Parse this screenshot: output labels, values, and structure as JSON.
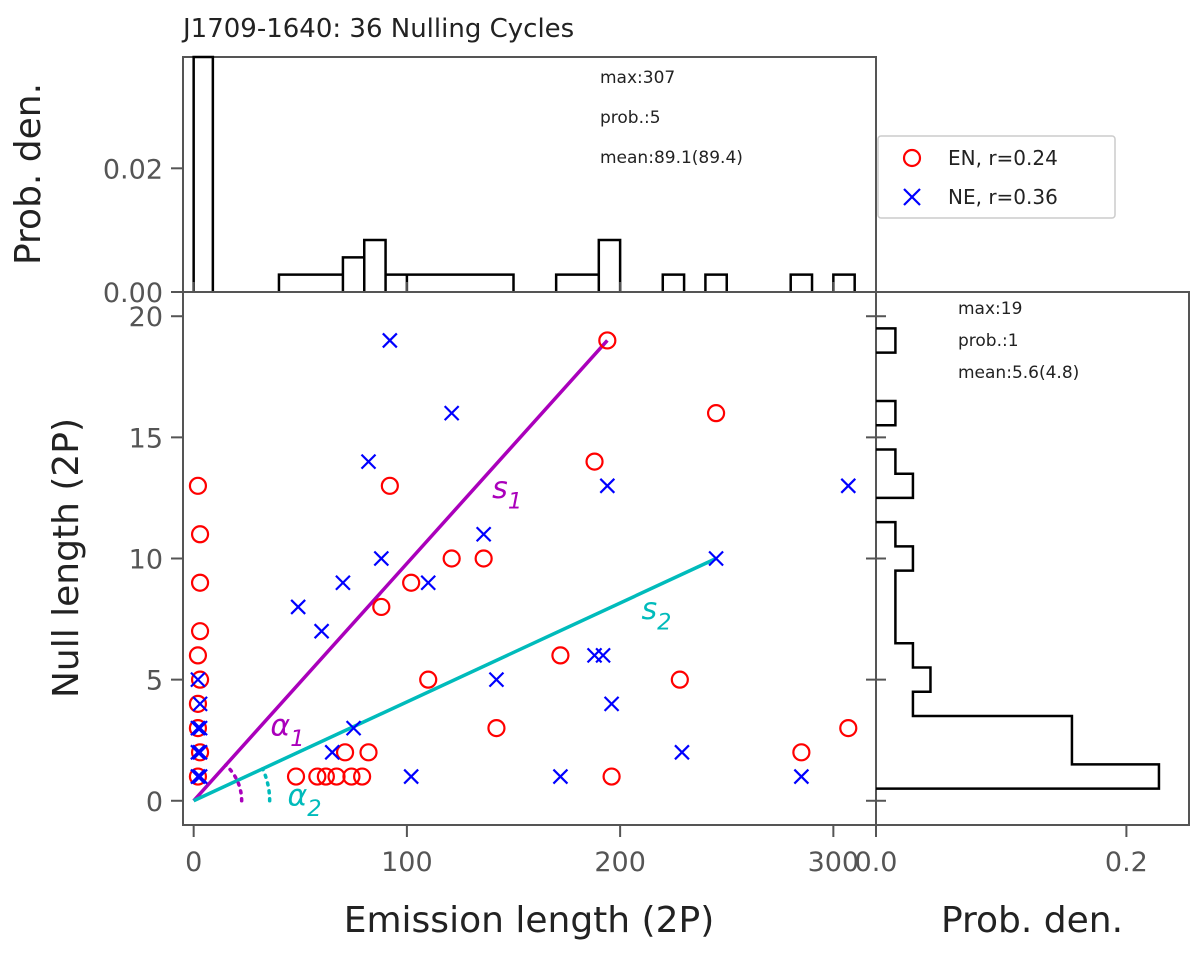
{
  "title": "J1709-1640: 36 Nulling Cycles",
  "colors": {
    "en": "#ff0000",
    "ne": "#0000ff",
    "s1": "#aa00bb",
    "s2": "#00bbbb",
    "axes": "#555555",
    "hist": "#000000"
  },
  "chart_data": [
    {
      "id": "scatter",
      "type": "scatter",
      "xlabel": "Emission length (2P)",
      "ylabel": "Null length (2P)",
      "xlim": [
        -5,
        320
      ],
      "ylim": [
        -1,
        21
      ],
      "xticks": [
        0,
        100,
        200,
        300
      ],
      "yticks": [
        0,
        5,
        10,
        15,
        20
      ],
      "series": [
        {
          "name": "EN, r=0.24",
          "key": "en",
          "marker": "circle",
          "points": [
            [
              2,
              13
            ],
            [
              3,
              11
            ],
            [
              3,
              9
            ],
            [
              3,
              7
            ],
            [
              2,
              6
            ],
            [
              3,
              5
            ],
            [
              2,
              4
            ],
            [
              2,
              3
            ],
            [
              3,
              2
            ],
            [
              2,
              1
            ],
            [
              48,
              1
            ],
            [
              58,
              1
            ],
            [
              62,
              1
            ],
            [
              67,
              1
            ],
            [
              74,
              1
            ],
            [
              79,
              1
            ],
            [
              71,
              2
            ],
            [
              82,
              2
            ],
            [
              88,
              8
            ],
            [
              92,
              13
            ],
            [
              102,
              9
            ],
            [
              110,
              5
            ],
            [
              121,
              10
            ],
            [
              136,
              10
            ],
            [
              142,
              3
            ],
            [
              172,
              6
            ],
            [
              188,
              14
            ],
            [
              194,
              19
            ],
            [
              196,
              1
            ],
            [
              228,
              5
            ],
            [
              245,
              16
            ],
            [
              285,
              2
            ],
            [
              307,
              3
            ]
          ]
        },
        {
          "name": "NE, r=0.36",
          "key": "ne",
          "marker": "x",
          "points": [
            [
              2,
              5
            ],
            [
              3,
              4
            ],
            [
              2,
              3
            ],
            [
              3,
              3
            ],
            [
              2,
              2
            ],
            [
              3,
              2
            ],
            [
              2,
              1
            ],
            [
              3,
              1
            ],
            [
              49,
              8
            ],
            [
              60,
              7
            ],
            [
              65,
              2
            ],
            [
              70,
              9
            ],
            [
              75,
              3
            ],
            [
              82,
              14
            ],
            [
              88,
              10
            ],
            [
              92,
              19
            ],
            [
              102,
              1
            ],
            [
              110,
              9
            ],
            [
              121,
              16
            ],
            [
              136,
              11
            ],
            [
              142,
              5
            ],
            [
              172,
              1
            ],
            [
              188,
              6
            ],
            [
              192,
              6
            ],
            [
              194,
              13
            ],
            [
              196,
              4
            ],
            [
              229,
              2
            ],
            [
              245,
              10
            ],
            [
              285,
              1
            ],
            [
              307,
              13
            ]
          ]
        }
      ],
      "fit_lines": [
        {
          "name": "s",
          "sub": "1",
          "key": "s1",
          "x": [
            0,
            194
          ],
          "y": [
            0,
            19
          ],
          "label_at": [
            140,
            12.5
          ]
        },
        {
          "name": "s",
          "sub": "2",
          "key": "s2",
          "x": [
            0,
            245
          ],
          "y": [
            0,
            10
          ],
          "label_at": [
            210,
            7.5
          ]
        }
      ],
      "angle_labels": [
        {
          "name": "α",
          "sub": "1",
          "key": "s1",
          "at": [
            36,
            2.7
          ]
        },
        {
          "name": "α",
          "sub": "2",
          "key": "s2",
          "at": [
            44,
            -0.2
          ]
        }
      ]
    },
    {
      "id": "hist-top",
      "type": "histogram",
      "orientation": "vertical",
      "ylabel": "Prob. den.",
      "xlim": [
        -5,
        320
      ],
      "ylim": [
        0,
        0.038
      ],
      "yticks": [
        0.0,
        0.02
      ],
      "ytick_labels": [
        "0.00",
        "0.02"
      ],
      "bins": [
        [
          0,
          9,
          0.038
        ],
        [
          40,
          70,
          0.0028
        ],
        [
          70,
          80,
          0.0056
        ],
        [
          80,
          90,
          0.0084
        ],
        [
          90,
          100,
          0.0028
        ],
        [
          100,
          150,
          0.0028
        ],
        [
          170,
          190,
          0.0028
        ],
        [
          190,
          200,
          0.0084
        ],
        [
          220,
          230,
          0.0028
        ],
        [
          240,
          250,
          0.0028
        ],
        [
          280,
          290,
          0.0028
        ],
        [
          300,
          310,
          0.0028
        ]
      ],
      "stats": [
        "max:307",
        "prob.:5",
        "mean:89.1(89.4)"
      ]
    },
    {
      "id": "hist-right",
      "type": "histogram",
      "orientation": "horizontal",
      "xlabel": "Prob. den.",
      "xlim": [
        0,
        0.25
      ],
      "ylim": [
        -1,
        21
      ],
      "xticks": [
        0.0,
        0.2
      ],
      "xtick_labels": [
        "0.0",
        "0.2"
      ],
      "bins": [
        [
          0.5,
          1.5,
          0.226
        ],
        [
          1.5,
          3.5,
          0.1565
        ],
        [
          3.5,
          4.5,
          0.0295
        ],
        [
          4.5,
          5.5,
          0.0435
        ],
        [
          5.5,
          6.5,
          0.0295
        ],
        [
          6.5,
          9.5,
          0.0155
        ],
        [
          9.5,
          10.5,
          0.0295
        ],
        [
          10.5,
          11.5,
          0.0155
        ],
        [
          11.5,
          12.5,
          0.0
        ],
        [
          12.5,
          13.5,
          0.0295
        ],
        [
          13.5,
          14.5,
          0.0155
        ],
        [
          14.5,
          15.5,
          0.0
        ],
        [
          15.5,
          16.5,
          0.0155
        ],
        [
          16.5,
          18.5,
          0.0
        ],
        [
          18.5,
          19.5,
          0.0155
        ]
      ],
      "stats": [
        "max:19",
        "prob.:1",
        "mean:5.6(4.8)"
      ]
    }
  ]
}
